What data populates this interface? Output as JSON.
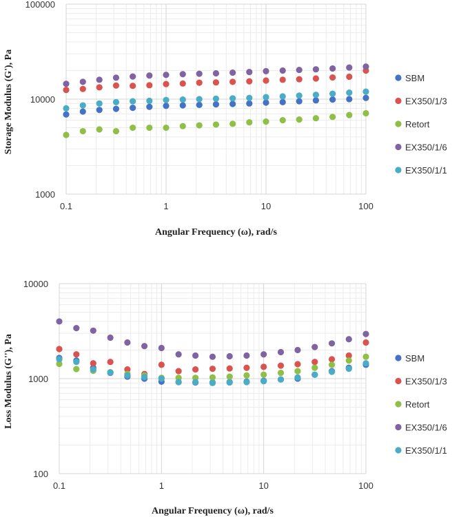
{
  "chart_data": [
    {
      "type": "scatter",
      "xscale": "log",
      "yscale": "log",
      "xlim": [
        0.1,
        100
      ],
      "ylim": [
        1000,
        100000
      ],
      "xlabel": "Angular Frequency (ω), rad/s",
      "ylabel": "Storage Modulus (G'), Pa",
      "x_ticks": [
        "0.1",
        "1",
        "10",
        "100"
      ],
      "y_ticks": [
        "1000",
        "10000",
        "100000"
      ],
      "x": [
        0.1,
        0.147,
        0.215,
        0.316,
        0.464,
        0.681,
        1.0,
        1.47,
        2.15,
        3.16,
        4.64,
        6.81,
        10.0,
        14.7,
        21.5,
        31.6,
        46.4,
        68.1,
        100
      ],
      "series": [
        {
          "name": "SBM",
          "color": "#4472C4",
          "values": [
            6900,
            7400,
            7700,
            7900,
            8100,
            8300,
            8500,
            8600,
            8700,
            8800,
            8900,
            9000,
            9200,
            9300,
            9500,
            9700,
            9900,
            10000,
            10300
          ]
        },
        {
          "name": "EX350/1/3",
          "color": "#D9534F",
          "values": [
            12500,
            12800,
            13300,
            13900,
            13800,
            14000,
            14400,
            14600,
            14900,
            15000,
            15200,
            15400,
            15700,
            16000,
            16200,
            16500,
            16900,
            17200,
            20000
          ]
        },
        {
          "name": "Retort",
          "color": "#8FBF47",
          "values": [
            4200,
            4600,
            4800,
            4600,
            5000,
            5000,
            5000,
            5200,
            5300,
            5400,
            5500,
            5700,
            5800,
            6000,
            6100,
            6300,
            6500,
            6800,
            7100
          ]
        },
        {
          "name": "EX350/1/6",
          "color": "#8064A2",
          "values": [
            14500,
            15200,
            16000,
            16800,
            17300,
            17700,
            18000,
            18300,
            18500,
            18700,
            19000,
            19300,
            19700,
            20000,
            20300,
            20600,
            21000,
            21500,
            22000
          ]
        },
        {
          "name": "EX350/1/1",
          "color": "#4BACC6",
          "values": [
            8000,
            8600,
            9000,
            9300,
            9500,
            9600,
            9800,
            9900,
            10000,
            10100,
            10200,
            10300,
            10500,
            10700,
            10900,
            11100,
            11400,
            11700,
            12000
          ]
        }
      ]
    },
    {
      "type": "scatter",
      "xscale": "log",
      "yscale": "log",
      "xlim": [
        0.1,
        100
      ],
      "ylim": [
        100,
        10000
      ],
      "xlabel": "Angular Frequency (ω), rad/s",
      "ylabel": "Loss Modulus (G''), Pa",
      "x_ticks": [
        "0.1",
        "1",
        "10",
        "100"
      ],
      "y_ticks": [
        "100",
        "1000",
        "10000"
      ],
      "x": [
        0.1,
        0.147,
        0.215,
        0.316,
        0.464,
        0.681,
        1.0,
        1.47,
        2.15,
        3.16,
        4.64,
        6.81,
        10.0,
        14.7,
        21.5,
        31.6,
        46.4,
        68.1,
        100
      ],
      "series": [
        {
          "name": "SBM",
          "color": "#4472C4",
          "values": [
            1650,
            1550,
            1300,
            1150,
            1050,
            1000,
            930,
            920,
            910,
            910,
            920,
            930,
            950,
            980,
            1000,
            1100,
            1200,
            1300,
            1400
          ]
        },
        {
          "name": "EX350/1/3",
          "color": "#D9534F",
          "values": [
            2050,
            1800,
            1450,
            1500,
            1250,
            1120,
            1400,
            1200,
            1250,
            1270,
            1280,
            1300,
            1330,
            1370,
            1420,
            1500,
            1600,
            1750,
            2400
          ]
        },
        {
          "name": "Retort",
          "color": "#8FBF47",
          "values": [
            1430,
            1260,
            1210,
            1170,
            1120,
            1080,
            1020,
            1020,
            1020,
            1030,
            1050,
            1080,
            1100,
            1150,
            1200,
            1300,
            1400,
            1550,
            1700
          ]
        },
        {
          "name": "EX350/1/6",
          "color": "#8064A2",
          "values": [
            4000,
            3400,
            3200,
            2700,
            2400,
            2200,
            2100,
            1800,
            1750,
            1700,
            1720,
            1750,
            1800,
            1900,
            2000,
            2150,
            2350,
            2600,
            2950
          ]
        },
        {
          "name": "EX350/1/1",
          "color": "#4BACC6",
          "values": [
            1600,
            1500,
            1250,
            1160,
            1080,
            1040,
            1000,
            920,
            920,
            900,
            910,
            920,
            940,
            980,
            1030,
            1100,
            1180,
            1270,
            1450
          ]
        }
      ]
    }
  ]
}
